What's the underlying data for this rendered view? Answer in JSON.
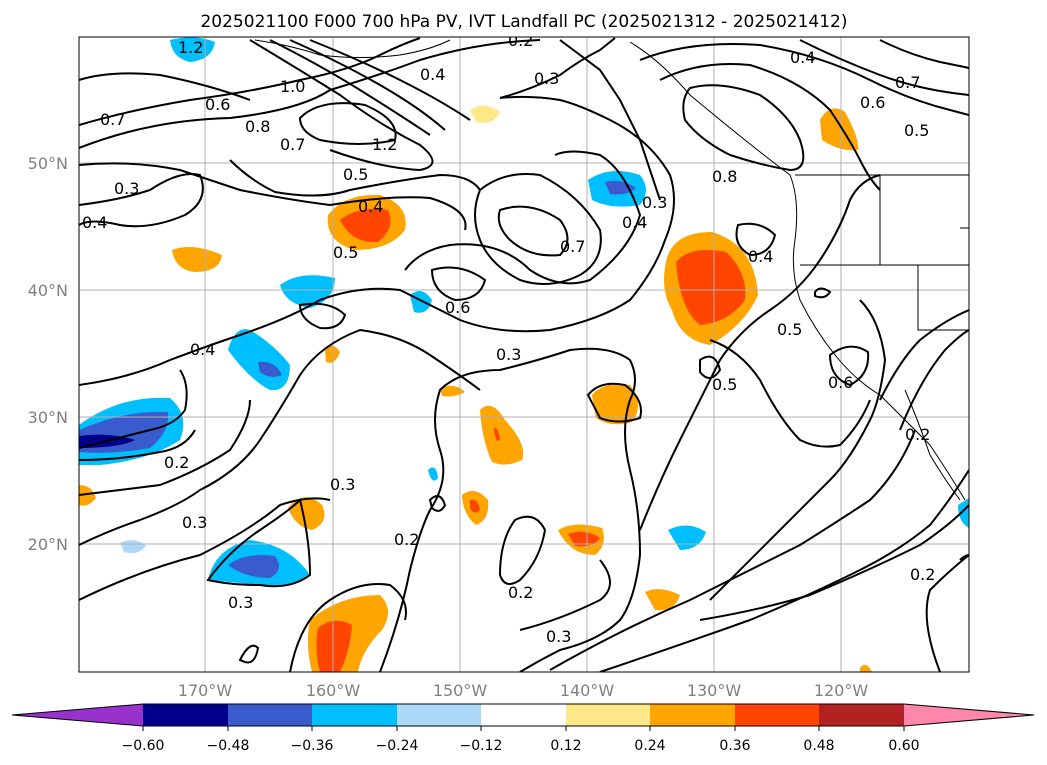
{
  "title": "2025021100 F000 700 hPa PV, IVT Landfall PC (2025021312 - 2025021412)",
  "axes": {
    "lat_labels": [
      "50°N",
      "40°N",
      "30°N",
      "20°N"
    ],
    "lon_labels": [
      "170°W",
      "160°W",
      "150°W",
      "140°W",
      "130°W",
      "120°W"
    ]
  },
  "contour_labels": [
    "1.2",
    "0.2",
    "0.4",
    "0.3",
    "0.4",
    "0.7",
    "0.6",
    "0.5",
    "1.0",
    "0.6",
    "0.8",
    "0.7",
    "1.2",
    "0.7",
    "0.5",
    "0.3",
    "0.4",
    "0.4",
    "0.5",
    "0.8",
    "0.3",
    "0.4",
    "0.7",
    "0.6",
    "0.5",
    "0.4",
    "0.3",
    "0.5",
    "0.6",
    "0.4",
    "0.2",
    "0.2",
    "0.3",
    "0.3",
    "0.2",
    "0.3",
    "0.2",
    "0.3",
    "0.2"
  ],
  "colorbar": {
    "ticks": [
      "−0.60",
      "−0.48",
      "−0.36",
      "−0.24",
      "−0.12",
      "0.12",
      "0.24",
      "0.36",
      "0.48",
      "0.60"
    ],
    "colors": [
      "#9932cc",
      "#00008b",
      "#3a5bcd",
      "#00bfff",
      "#add8f7",
      "#ffffff",
      "#ffe88a",
      "#ffa500",
      "#ff4500",
      "#b22222",
      "#ff88aa"
    ]
  },
  "fill_colors": {
    "neg_light": "#add8f7",
    "neg_mid": "#00bfff",
    "neg_strong": "#3a5bcd",
    "neg_max": "#00008b",
    "pos_light": "#ffe88a",
    "pos_mid": "#ffa500",
    "pos_strong": "#ff4500",
    "pos_max": "#b22222"
  }
}
